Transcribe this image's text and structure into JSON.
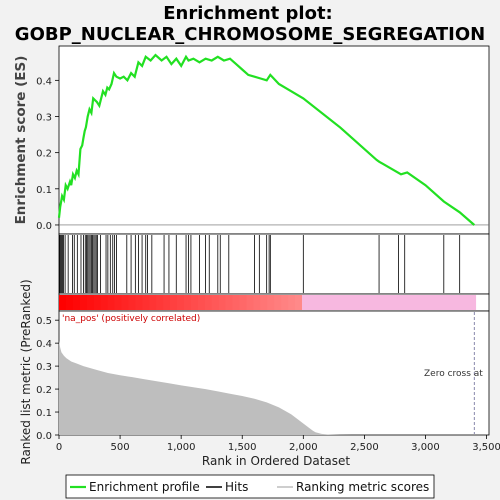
{
  "chart_data": {
    "type": "line",
    "title_line1": "Enrichment plot:",
    "title_line2": "GOBP_NUCLEAR_CHROMOSOME_SEGREGATION",
    "ylabel_top": "Enrichment score (ES)",
    "ylabel_bottom": "Ranked list metric (PreRanked)",
    "xlabel": "Rank in Ordered Dataset",
    "x_ticks": [
      "0",
      "500",
      "1,000",
      "1,500",
      "2,000",
      "2,500",
      "3,000",
      "3,500"
    ],
    "x_tick_values": [
      0,
      500,
      1000,
      1500,
      2000,
      2500,
      3000,
      3500
    ],
    "xlim": [
      0,
      3520
    ],
    "es_ticks": [
      "0.0",
      "0.1",
      "0.2",
      "0.3",
      "0.4"
    ],
    "es_tick_values": [
      0.0,
      0.1,
      0.2,
      0.3,
      0.4
    ],
    "es_ylim": [
      -0.025,
      0.495
    ],
    "metric_ticks": [
      "0.0",
      "0.1",
      "0.2",
      "0.3",
      "0.4",
      "0.5"
    ],
    "metric_tick_values": [
      0.0,
      0.1,
      0.2,
      0.3,
      0.4,
      0.5
    ],
    "metric_ylim": [
      0.0,
      0.54
    ],
    "annotation_pos": "'na_pos' (positively correlated)",
    "annotation_zero": "Zero cross at",
    "zero_cross": 3400,
    "dataset_size": 3410,
    "es_profile": {
      "x": [
        0,
        10,
        25,
        40,
        55,
        70,
        90,
        100,
        115,
        130,
        145,
        160,
        175,
        190,
        200,
        210,
        220,
        235,
        250,
        265,
        280,
        295,
        310,
        330,
        360,
        380,
        395,
        410,
        430,
        450,
        470,
        500,
        530,
        560,
        590,
        620,
        650,
        680,
        710,
        750,
        790,
        840,
        880,
        920,
        960,
        1000,
        1040,
        1060,
        1100,
        1150,
        1200,
        1250,
        1300,
        1350,
        1400,
        1450,
        1500,
        1550,
        1600,
        1650,
        1700,
        1730,
        1800,
        1900,
        2000,
        2300,
        2600,
        2620,
        2800,
        2850,
        3000,
        3150,
        3280,
        3400
      ],
      "y": [
        0.02,
        0.05,
        0.08,
        0.07,
        0.11,
        0.1,
        0.12,
        0.11,
        0.14,
        0.13,
        0.15,
        0.14,
        0.21,
        0.22,
        0.24,
        0.26,
        0.27,
        0.3,
        0.32,
        0.31,
        0.35,
        0.345,
        0.34,
        0.33,
        0.37,
        0.36,
        0.38,
        0.375,
        0.39,
        0.42,
        0.41,
        0.405,
        0.41,
        0.4,
        0.42,
        0.41,
        0.45,
        0.44,
        0.465,
        0.455,
        0.47,
        0.455,
        0.465,
        0.445,
        0.46,
        0.44,
        0.465,
        0.455,
        0.46,
        0.45,
        0.46,
        0.455,
        0.465,
        0.455,
        0.46,
        0.445,
        0.43,
        0.415,
        0.41,
        0.405,
        0.4,
        0.415,
        0.39,
        0.37,
        0.35,
        0.27,
        0.18,
        0.175,
        0.14,
        0.145,
        0.11,
        0.065,
        0.035,
        0.0
      ]
    },
    "hits": [
      5,
      12,
      20,
      28,
      36,
      50,
      75,
      110,
      125,
      150,
      180,
      200,
      215,
      225,
      235,
      245,
      255,
      265,
      275,
      285,
      295,
      305,
      315,
      340,
      385,
      400,
      420,
      440,
      455,
      470,
      555,
      590,
      625,
      650,
      680,
      710,
      725,
      760,
      860,
      900,
      960,
      1040,
      1060,
      1080,
      1150,
      1200,
      1230,
      1300,
      1320,
      1390,
      1600,
      1640,
      1700,
      1720,
      1730,
      2000,
      2620,
      2780,
      2830,
      3150,
      3280
    ],
    "metric_curve": {
      "x": [
        0,
        10,
        20,
        40,
        60,
        100,
        150,
        200,
        300,
        400,
        500,
        600,
        700,
        800,
        900,
        1000,
        1100,
        1200,
        1300,
        1400,
        1500,
        1600,
        1700,
        1800,
        1900,
        1950,
        2000,
        2050,
        2080,
        2100,
        2150,
        2200,
        2300,
        2400,
        3410
      ],
      "y": [
        0.41,
        0.38,
        0.36,
        0.345,
        0.335,
        0.32,
        0.31,
        0.3,
        0.285,
        0.27,
        0.26,
        0.252,
        0.243,
        0.234,
        0.225,
        0.216,
        0.208,
        0.2,
        0.19,
        0.18,
        0.17,
        0.158,
        0.142,
        0.12,
        0.09,
        0.07,
        0.05,
        0.03,
        0.018,
        0.012,
        0.005,
        0.002,
        0.0005,
        0.0,
        0.0
      ]
    },
    "colors": {
      "es_line": "#22e022",
      "hit_line": "#000000",
      "metric_fill": "#bebebe",
      "heat_red": "#ff0000",
      "heat_pink": "#f7b8e0",
      "zero_line": "#8888aa",
      "annot_pos": "#cc0000"
    },
    "legend": [
      {
        "label": "Enrichment profile",
        "color": "#22e022"
      },
      {
        "label": "Hits",
        "color": "#000000"
      },
      {
        "label": "Ranking metric scores",
        "color": "#bebebe"
      }
    ],
    "grid": false
  }
}
